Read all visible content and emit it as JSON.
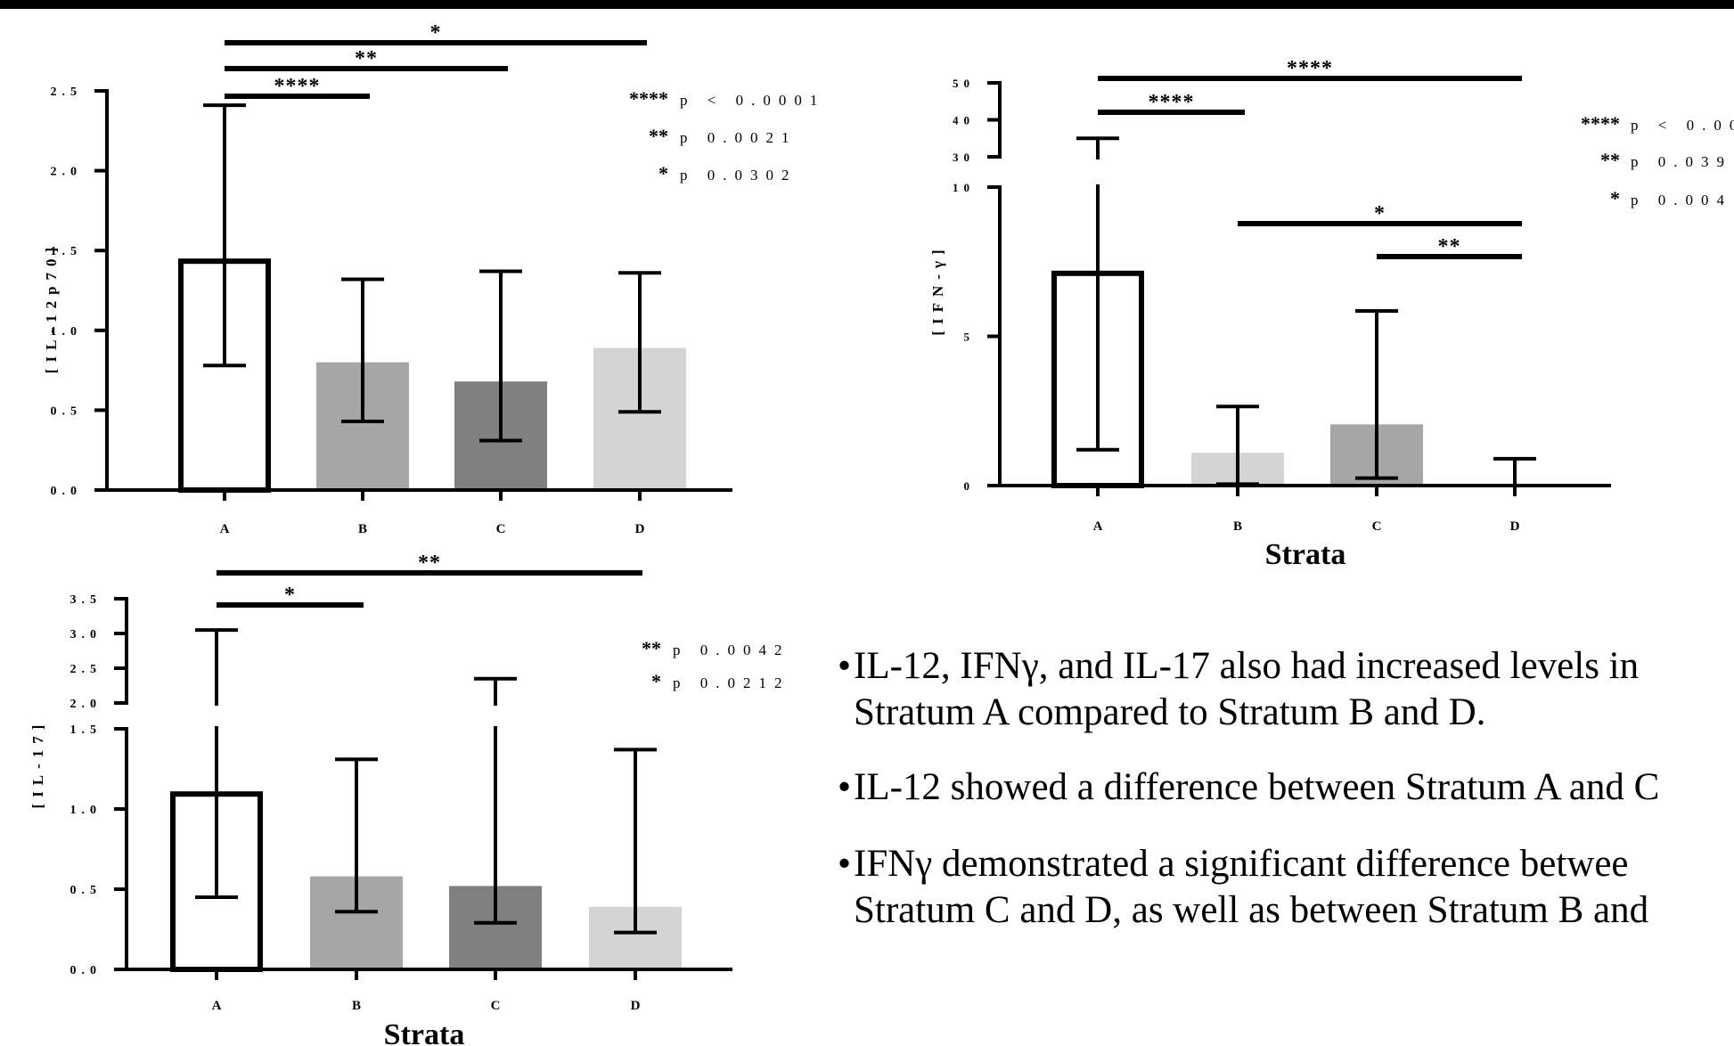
{
  "chart_data": [
    {
      "type": "bar",
      "ylabel": "[IL-12p70]",
      "xlabel": "",
      "categories": [
        "A",
        "B",
        "C",
        "D"
      ],
      "values": [
        1.45,
        0.8,
        0.68,
        0.89
      ],
      "error_low": [
        0.78,
        0.43,
        0.31,
        0.49
      ],
      "error_high": [
        2.41,
        1.32,
        1.37,
        1.36
      ],
      "ylim": [
        0,
        2.5
      ],
      "yticks": [
        "0.0",
        "0.5",
        "1.0",
        "1.5",
        "2.0",
        "2.5"
      ],
      "bar_colors": [
        "#ffffff",
        "#a6a6a6",
        "#808080",
        "#d4d4d4"
      ],
      "significance": [
        {
          "from": "A",
          "to": "B",
          "label": "****"
        },
        {
          "from": "A",
          "to": "C",
          "label": "**"
        },
        {
          "from": "A",
          "to": "D",
          "label": "*"
        }
      ],
      "legend": [
        {
          "stars": "****",
          "text": "p < 0.0001"
        },
        {
          "stars": "**",
          "text": "p 0.0021"
        },
        {
          "stars": "*",
          "text": "p 0.0302"
        }
      ]
    },
    {
      "type": "bar",
      "ylabel": "[IFN-γ]",
      "xlabel": "Strata",
      "categories": [
        "A",
        "B",
        "C",
        "D"
      ],
      "values": [
        7.2,
        1.1,
        2.05,
        0.05
      ],
      "error_low": [
        1.2,
        0.05,
        0.25,
        0.0
      ],
      "error_high": [
        35,
        2.65,
        5.85,
        0.9
      ],
      "ylim": [
        0,
        50
      ],
      "axis_break": [
        10,
        30
      ],
      "yticks": [
        "0",
        "5",
        "10",
        "30",
        "40",
        "50"
      ],
      "bar_colors": [
        "#ffffff",
        "#d4d4d4",
        "#a6a6a6",
        "#808080"
      ],
      "significance": [
        {
          "from": "A",
          "to": "B",
          "label": "****"
        },
        {
          "from": "A",
          "to": "D",
          "label": "****"
        },
        {
          "from": "B",
          "to": "D",
          "label": "*"
        },
        {
          "from": "C",
          "to": "D",
          "label": "**"
        }
      ],
      "legend": [
        {
          "stars": "****",
          "text": "p < 0.00"
        },
        {
          "stars": "**",
          "text": "p 0.039"
        },
        {
          "stars": "*",
          "text": "p 0.004"
        }
      ]
    },
    {
      "type": "bar",
      "ylabel": "[IL-17]",
      "xlabel": "Strata",
      "categories": [
        "A",
        "B",
        "C",
        "D"
      ],
      "values": [
        1.11,
        0.58,
        0.52,
        0.39
      ],
      "error_low": [
        0.45,
        0.36,
        0.29,
        0.23
      ],
      "error_high": [
        3.05,
        1.31,
        2.35,
        1.37
      ],
      "ylim": [
        0,
        3.5
      ],
      "axis_break": [
        1.5,
        2.0
      ],
      "yticks": [
        "0.0",
        "0.5",
        "1.0",
        "1.5",
        "2.0",
        "2.5",
        "3.0",
        "3.5"
      ],
      "bar_colors": [
        "#ffffff",
        "#a6a6a6",
        "#808080",
        "#d4d4d4"
      ],
      "significance": [
        {
          "from": "A",
          "to": "B",
          "label": "*"
        },
        {
          "from": "A",
          "to": "D",
          "label": "**"
        }
      ],
      "legend": [
        {
          "stars": "**",
          "text": "p 0.0042"
        },
        {
          "stars": "*",
          "text": "p 0.0212"
        }
      ]
    }
  ],
  "bullets": [
    {
      "lines": [
        "IL-12, IFNγ, and IL-17 also had increased levels in",
        "Stratum A compared to Stratum B and D."
      ]
    },
    {
      "lines": [
        "IL-12 showed a difference between Stratum A and C"
      ]
    },
    {
      "lines": [
        "IFNγ demonstrated a significant difference betwee",
        "Stratum C and D, as well as between Stratum B and"
      ]
    }
  ],
  "bullet_symbol": "•"
}
